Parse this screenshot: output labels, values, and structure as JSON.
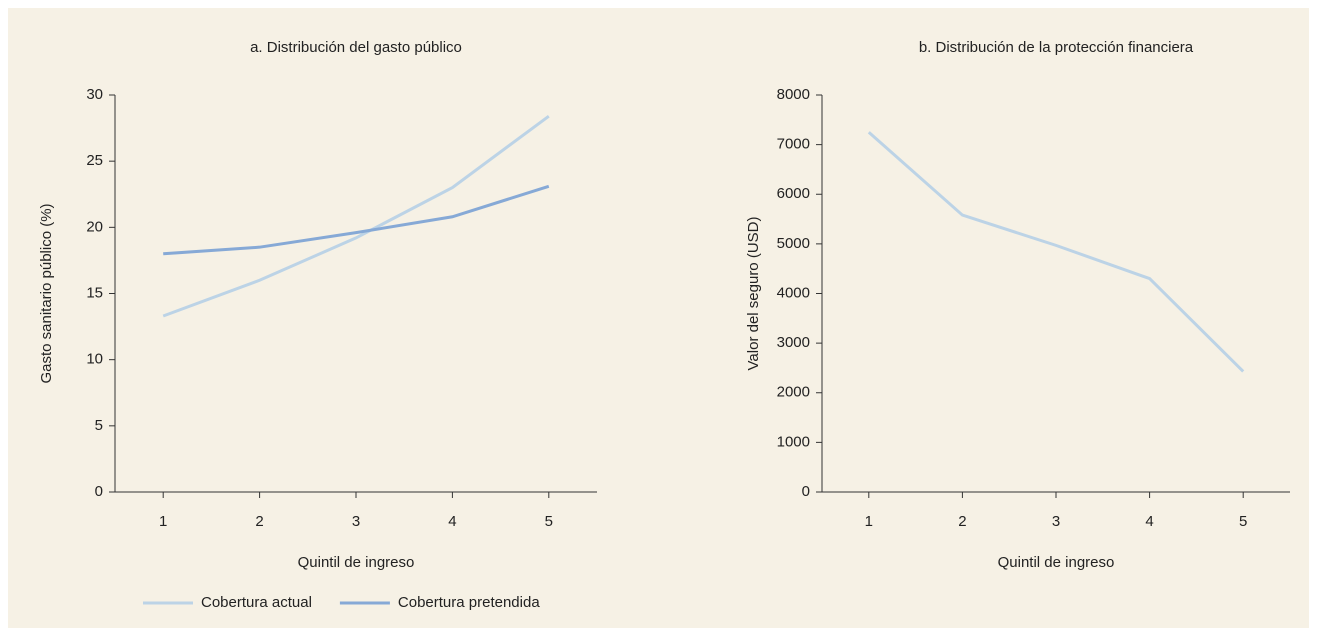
{
  "chart_data": [
    {
      "type": "line",
      "title": "a. Distribución del gasto público",
      "x": [
        1,
        2,
        3,
        4,
        5
      ],
      "xlim": [
        0.5,
        5.5
      ],
      "xticks": [
        1,
        2,
        3,
        4,
        5
      ],
      "ylim": [
        0,
        30
      ],
      "yticks": [
        0,
        5,
        10,
        15,
        20,
        25,
        30
      ],
      "xlabel": "Quintil de ingreso",
      "ylabel": "Gasto sanitario público (%)",
      "legend": "bottom",
      "series": [
        {
          "name": "Cobertura actual",
          "color": "#bcd3e6",
          "values": [
            13.3,
            16,
            19.2,
            23,
            28.4
          ]
        },
        {
          "name": "Cobertura pretendida",
          "color": "#86a9d6",
          "values": [
            18,
            18.5,
            19.6,
            20.8,
            23.1
          ]
        }
      ]
    },
    {
      "type": "line",
      "title": "b. Distribución de la protección financiera",
      "x": [
        1,
        2,
        3,
        4,
        5
      ],
      "xlim": [
        0.5,
        5.5
      ],
      "xticks": [
        1,
        2,
        3,
        4,
        5
      ],
      "ylim": [
        0,
        8000
      ],
      "yticks": [
        0,
        1000,
        2000,
        3000,
        4000,
        5000,
        6000,
        7000,
        8000
      ],
      "xlabel": "Quintil de ingreso",
      "ylabel": "Valor del seguro (USD)",
      "series": [
        {
          "color": "#bcd3e6",
          "values": [
            7250,
            5580,
            4970,
            4300,
            2430
          ]
        }
      ]
    }
  ]
}
